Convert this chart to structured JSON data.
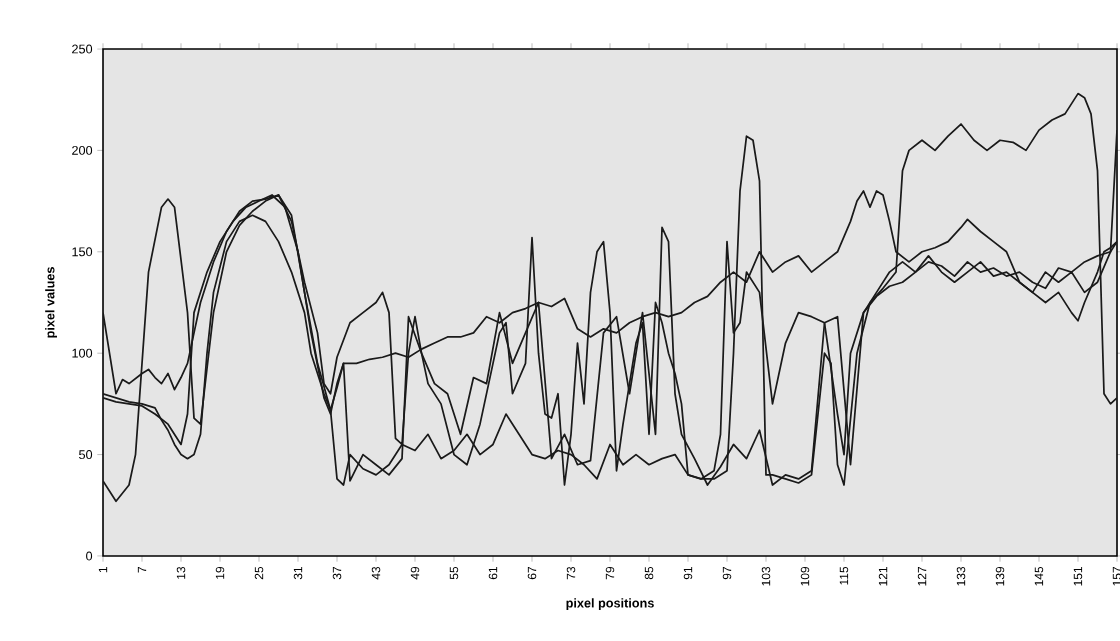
{
  "chart_data": {
    "type": "line",
    "xlabel": "pixel positions",
    "ylabel": "pixel values",
    "xlim": [
      1,
      157
    ],
    "xticks": [
      1,
      7,
      13,
      19,
      25,
      31,
      37,
      43,
      49,
      55,
      61,
      67,
      73,
      79,
      85,
      91,
      97,
      103,
      109,
      115,
      121,
      127,
      133,
      139,
      145,
      151,
      157
    ],
    "ylim": [
      0,
      250
    ],
    "yticks": [
      0,
      50,
      100,
      150,
      200,
      250
    ],
    "grid": false,
    "series": [
      {
        "color": "#1a1a1a",
        "x": [
          1,
          3,
          5,
          6,
          8,
          10,
          11,
          12,
          14,
          15,
          16,
          18,
          20,
          22,
          24,
          26,
          28,
          30,
          32,
          34,
          36,
          37,
          38,
          39,
          41,
          43,
          45,
          47,
          49,
          51,
          53,
          55,
          57,
          59,
          61,
          63,
          65,
          67,
          69,
          71,
          73,
          75,
          77,
          79,
          81,
          83,
          85,
          87,
          89,
          91,
          93,
          95,
          97,
          98,
          99,
          100,
          101,
          102,
          103,
          104,
          106,
          108,
          110,
          112,
          113,
          114,
          115,
          117,
          119,
          121,
          123,
          124,
          125,
          127,
          129,
          131,
          133,
          135,
          137,
          139,
          141,
          143,
          145,
          147,
          149,
          151,
          152,
          153,
          154,
          155,
          156,
          157
        ],
        "values": [
          37,
          27,
          35,
          50,
          140,
          172,
          176,
          172,
          120,
          68,
          65,
          120,
          150,
          163,
          170,
          175,
          178,
          168,
          130,
          95,
          72,
          38,
          35,
          50,
          43,
          40,
          45,
          55,
          52,
          60,
          48,
          52,
          60,
          50,
          55,
          70,
          60,
          50,
          48,
          52,
          50,
          45,
          38,
          55,
          45,
          50,
          45,
          48,
          50,
          40,
          38,
          38,
          42,
          100,
          180,
          207,
          205,
          185,
          40,
          40,
          38,
          36,
          40,
          100,
          95,
          45,
          35,
          100,
          125,
          132,
          140,
          190,
          200,
          205,
          200,
          207,
          213,
          205,
          200,
          205,
          204,
          200,
          210,
          215,
          218,
          228,
          226,
          218,
          190,
          80,
          75,
          78
        ]
      },
      {
        "color": "#1a1a1a",
        "x": [
          1,
          3,
          5,
          7,
          9,
          10,
          11,
          12,
          13,
          14,
          15,
          16,
          17,
          18,
          20,
          22,
          24,
          26,
          28,
          30,
          32,
          33,
          35,
          36,
          37,
          38,
          40,
          42,
          44,
          46,
          48,
          50,
          52,
          54,
          56,
          58,
          60,
          62,
          64,
          66,
          68,
          70,
          72,
          74,
          76,
          78,
          80,
          82,
          84,
          86,
          88,
          90,
          92,
          94,
          96,
          98,
          100,
          102,
          104,
          106,
          108,
          110,
          112,
          114,
          116,
          117,
          118,
          119,
          120,
          121,
          122,
          123,
          125,
          127,
          129,
          131,
          133,
          134,
          136,
          138,
          140,
          142,
          144,
          146,
          148,
          150,
          151,
          152,
          154,
          155,
          156,
          157
        ],
        "values": [
          80,
          78,
          76,
          75,
          73,
          67,
          62,
          55,
          50,
          48,
          50,
          60,
          100,
          130,
          155,
          165,
          168,
          165,
          155,
          140,
          120,
          100,
          80,
          72,
          83,
          95,
          95,
          97,
          98,
          100,
          98,
          102,
          105,
          108,
          108,
          110,
          118,
          115,
          120,
          122,
          125,
          123,
          127,
          112,
          108,
          112,
          110,
          115,
          118,
          120,
          118,
          120,
          125,
          128,
          135,
          140,
          135,
          150,
          140,
          145,
          148,
          140,
          145,
          150,
          165,
          175,
          180,
          172,
          180,
          178,
          165,
          150,
          145,
          150,
          152,
          155,
          162,
          166,
          160,
          155,
          150,
          135,
          130,
          125,
          130,
          120,
          116,
          125,
          140,
          150,
          152,
          155
        ]
      },
      {
        "color": "#1a1a1a",
        "x": [
          1,
          2,
          3,
          4,
          5,
          7,
          8,
          9,
          10,
          11,
          12,
          13,
          14,
          15,
          16,
          18,
          20,
          22,
          24,
          26,
          28,
          30,
          32,
          34,
          35,
          36,
          37,
          39,
          41,
          43,
          44,
          45,
          46,
          47,
          48,
          49,
          50,
          51,
          53,
          55,
          57,
          59,
          61,
          62,
          63,
          64,
          66,
          67,
          68,
          69,
          70,
          71,
          72,
          73,
          74,
          75,
          76,
          77,
          78,
          79,
          80,
          81,
          83,
          84,
          85,
          86,
          87,
          88,
          89,
          90,
          91,
          93,
          95,
          96,
          97,
          98,
          99,
          100,
          102,
          104,
          106,
          108,
          110,
          112,
          114,
          115,
          116,
          118,
          120,
          122,
          124,
          126,
          128,
          130,
          132,
          134,
          136,
          138,
          140,
          142,
          144,
          146,
          148,
          150,
          152,
          154,
          156,
          157
        ],
        "values": [
          120,
          100,
          80,
          87,
          85,
          90,
          92,
          88,
          85,
          90,
          82,
          88,
          95,
          110,
          125,
          145,
          160,
          170,
          175,
          176,
          178,
          165,
          135,
          110,
          85,
          80,
          98,
          115,
          120,
          125,
          130,
          120,
          58,
          55,
          100,
          118,
          100,
          85,
          75,
          50,
          45,
          65,
          95,
          110,
          115,
          80,
          95,
          157,
          100,
          70,
          68,
          80,
          35,
          60,
          105,
          75,
          130,
          150,
          155,
          120,
          42,
          65,
          105,
          115,
          60,
          125,
          115,
          100,
          90,
          75,
          40,
          38,
          42,
          60,
          155,
          110,
          115,
          140,
          130,
          75,
          105,
          120,
          118,
          115,
          70,
          50,
          100,
          120,
          128,
          133,
          135,
          140,
          145,
          143,
          138,
          145,
          140,
          142,
          138,
          140,
          135,
          132,
          142,
          140,
          145,
          148,
          150,
          155
        ]
      },
      {
        "color": "#1a1a1a",
        "x": [
          1,
          3,
          5,
          7,
          9,
          11,
          13,
          14,
          15,
          17,
          19,
          21,
          23,
          25,
          27,
          29,
          31,
          33,
          35,
          36,
          37,
          38,
          39,
          41,
          43,
          45,
          47,
          48,
          50,
          52,
          54,
          56,
          58,
          60,
          62,
          64,
          66,
          68,
          70,
          72,
          74,
          76,
          78,
          80,
          82,
          84,
          86,
          87,
          88,
          89,
          90,
          92,
          94,
          96,
          98,
          100,
          102,
          104,
          106,
          108,
          110,
          112,
          114,
          116,
          118,
          120,
          122,
          124,
          126,
          128,
          130,
          132,
          134,
          136,
          138,
          140,
          142,
          144,
          146,
          148,
          150,
          152,
          154,
          156,
          157
        ],
        "values": [
          78,
          76,
          75,
          74,
          70,
          65,
          55,
          70,
          120,
          140,
          155,
          165,
          172,
          175,
          178,
          172,
          150,
          110,
          78,
          70,
          85,
          95,
          37,
          50,
          45,
          40,
          48,
          118,
          100,
          85,
          80,
          60,
          88,
          85,
          120,
          95,
          110,
          125,
          48,
          60,
          45,
          47,
          110,
          118,
          80,
          120,
          60,
          162,
          155,
          80,
          60,
          48,
          35,
          44,
          55,
          48,
          62,
          35,
          40,
          38,
          42,
          115,
          118,
          45,
          120,
          130,
          140,
          145,
          140,
          148,
          140,
          135,
          140,
          145,
          138,
          140,
          135,
          130,
          140,
          135,
          140,
          130,
          135,
          150,
          210
        ]
      }
    ]
  }
}
